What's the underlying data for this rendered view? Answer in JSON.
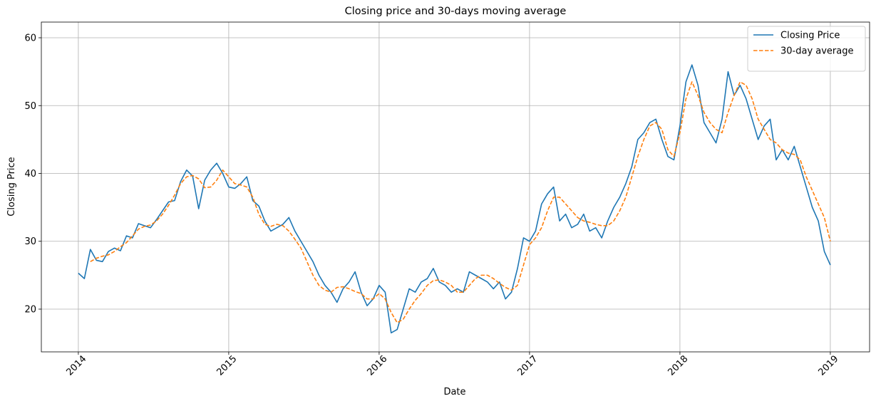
{
  "chart_data": {
    "type": "line",
    "title": "Closing price and 30-days moving average",
    "xlabel": "Date",
    "ylabel": "Closing Price",
    "x": [
      2014.0,
      2014.04,
      2014.08,
      2014.12,
      2014.16,
      2014.2,
      2014.24,
      2014.28,
      2014.32,
      2014.36,
      2014.4,
      2014.44,
      2014.48,
      2014.52,
      2014.56,
      2014.6,
      2014.64,
      2014.68,
      2014.72,
      2014.76,
      2014.8,
      2014.84,
      2014.88,
      2014.92,
      2014.96,
      2015.0,
      2015.04,
      2015.08,
      2015.12,
      2015.16,
      2015.2,
      2015.24,
      2015.28,
      2015.32,
      2015.36,
      2015.4,
      2015.44,
      2015.48,
      2015.52,
      2015.56,
      2015.6,
      2015.64,
      2015.68,
      2015.72,
      2015.76,
      2015.8,
      2015.84,
      2015.88,
      2015.92,
      2015.96,
      2016.0,
      2016.04,
      2016.08,
      2016.12,
      2016.16,
      2016.2,
      2016.24,
      2016.28,
      2016.32,
      2016.36,
      2016.4,
      2016.44,
      2016.48,
      2016.52,
      2016.56,
      2016.6,
      2016.64,
      2016.68,
      2016.72,
      2016.76,
      2016.8,
      2016.84,
      2016.88,
      2016.92,
      2016.96,
      2017.0,
      2017.04,
      2017.08,
      2017.12,
      2017.16,
      2017.2,
      2017.24,
      2017.28,
      2017.32,
      2017.36,
      2017.4,
      2017.44,
      2017.48,
      2017.52,
      2017.56,
      2017.6,
      2017.64,
      2017.68,
      2017.72,
      2017.76,
      2017.8,
      2017.84,
      2017.88,
      2017.92,
      2017.96,
      2018.0,
      2018.04,
      2018.08,
      2018.12,
      2018.16,
      2018.2,
      2018.24,
      2018.28,
      2018.32,
      2018.36,
      2018.4,
      2018.44,
      2018.48,
      2018.52,
      2018.56,
      2018.6,
      2018.64,
      2018.68,
      2018.72,
      2018.76,
      2018.8,
      2018.84,
      2018.88,
      2018.92,
      2018.96,
      2019.0
    ],
    "series": [
      {
        "name": "Closing Price",
        "color": "#1f77b4",
        "dash": false,
        "values": [
          25.3,
          24.5,
          28.8,
          27.2,
          27.0,
          28.5,
          29.0,
          28.6,
          30.8,
          30.5,
          32.6,
          32.3,
          32.0,
          33.2,
          34.5,
          35.8,
          36.0,
          38.8,
          40.5,
          39.6,
          34.8,
          39.0,
          40.5,
          41.5,
          40.0,
          38.0,
          37.8,
          38.5,
          39.5,
          36.0,
          35.2,
          33.0,
          31.5,
          32.0,
          32.5,
          33.5,
          31.5,
          30.0,
          28.5,
          27.0,
          25.0,
          23.5,
          22.5,
          21.0,
          23.0,
          24.0,
          25.5,
          22.5,
          20.5,
          21.5,
          23.5,
          22.5,
          16.5,
          17.0,
          20.0,
          23.0,
          22.5,
          24.0,
          24.5,
          26.0,
          24.0,
          23.5,
          22.5,
          23.0,
          22.5,
          25.5,
          25.0,
          24.5,
          24.0,
          23.0,
          24.0,
          21.5,
          22.5,
          26.0,
          30.5,
          30.0,
          31.5,
          35.5,
          37.0,
          38.0,
          33.0,
          34.0,
          32.0,
          32.5,
          34.0,
          31.5,
          32.0,
          30.5,
          33.0,
          35.0,
          36.5,
          38.5,
          41.0,
          45.0,
          46.0,
          47.5,
          48.0,
          45.0,
          42.5,
          42.0,
          47.0,
          53.5,
          56.0,
          53.0,
          47.5,
          46.0,
          44.5,
          48.0,
          55.0,
          51.5,
          53.0,
          51.0,
          48.0,
          45.0,
          47.0,
          48.0,
          42.0,
          43.5,
          42.0,
          44.0,
          41.0,
          38.0,
          35.0,
          33.0,
          28.5,
          26.5
        ]
      },
      {
        "name": "30-day average",
        "color": "#ff7f0e",
        "dash": true,
        "values": [
          null,
          null,
          27.0,
          27.5,
          27.8,
          28.0,
          28.5,
          29.2,
          29.8,
          30.8,
          31.8,
          32.2,
          32.4,
          33.0,
          34.0,
          35.3,
          36.8,
          38.5,
          39.5,
          39.7,
          39.2,
          37.9,
          38.0,
          39.0,
          40.5,
          39.5,
          38.5,
          38.3,
          38.0,
          36.5,
          34.0,
          32.5,
          32.2,
          32.5,
          32.3,
          31.5,
          30.3,
          29.0,
          27.0,
          25.0,
          23.5,
          22.8,
          22.5,
          23.2,
          23.3,
          23.0,
          22.6,
          22.3,
          21.5,
          21.5,
          22.3,
          21.5,
          19.5,
          18.0,
          18.5,
          20.0,
          21.3,
          22.3,
          23.5,
          24.2,
          24.3,
          24.0,
          23.5,
          22.5,
          22.5,
          23.5,
          24.5,
          25.0,
          25.0,
          24.5,
          23.8,
          23.2,
          22.8,
          23.5,
          26.5,
          29.5,
          30.5,
          32.0,
          34.5,
          36.5,
          36.5,
          35.5,
          34.5,
          33.5,
          33.0,
          32.8,
          32.5,
          32.3,
          32.3,
          33.0,
          34.5,
          36.5,
          39.5,
          42.5,
          45.0,
          47.0,
          47.5,
          46.5,
          43.5,
          42.5,
          46.0,
          51.0,
          53.5,
          51.5,
          49.0,
          47.5,
          46.5,
          46.0,
          49.0,
          51.5,
          53.5,
          53.0,
          51.0,
          48.0,
          46.5,
          45.0,
          44.5,
          43.5,
          43.0,
          42.8,
          42.0,
          39.5,
          37.5,
          35.5,
          33.5,
          30.0
        ]
      }
    ],
    "xlim": [
      2013.754,
      2019.261
    ],
    "xticks": [
      2014,
      2015,
      2016,
      2017,
      2018,
      2019
    ],
    "ylim": [
      13.7,
      62.31
    ],
    "yticks": [
      20,
      30,
      40,
      50,
      60
    ],
    "grid": true,
    "legend": "upper right"
  }
}
